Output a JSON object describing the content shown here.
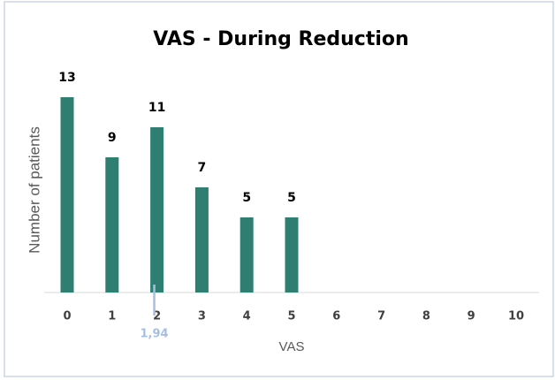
{
  "chart_data": {
    "type": "bar",
    "title": "VAS - During Reduction",
    "x_label": "VAS",
    "y_label": "Number of patients",
    "categories": [
      "0",
      "1",
      "2",
      "3",
      "4",
      "5",
      "6",
      "7",
      "8",
      "9",
      "10"
    ],
    "values": [
      13,
      9,
      11,
      7,
      5,
      5,
      null,
      null,
      null,
      null,
      null
    ],
    "color": "#2e7f72",
    "ylim": [
      0,
      14
    ],
    "mean_marker": {
      "value": 1.94,
      "label": "1,94",
      "color": "#a9bfe0"
    }
  }
}
